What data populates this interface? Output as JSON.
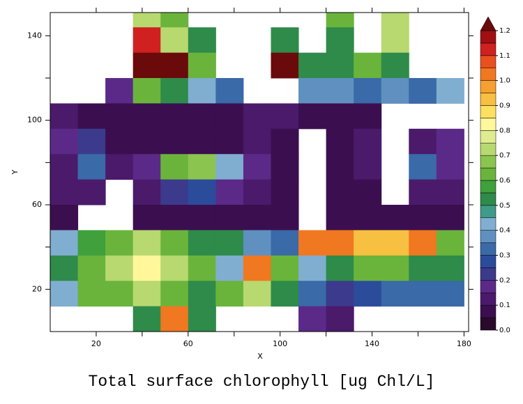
{
  "chart_data": {
    "type": "heatmap",
    "title": "Total surface chlorophyll [ug Chl/L]",
    "x_label": "X",
    "y_label": "Y",
    "xlim": [
      0,
      182
    ],
    "ylim": [
      0,
      151
    ],
    "xticks": [
      20,
      60,
      100,
      140,
      180
    ],
    "xminor": [
      40,
      80,
      120,
      160
    ],
    "yticks": [
      20,
      60,
      100,
      140
    ],
    "yminor": [
      40,
      80,
      120
    ],
    "x": [
      6,
      18,
      30,
      42,
      54,
      66,
      78,
      90,
      102,
      114,
      126,
      138,
      150,
      162,
      174
    ],
    "y": [
      150,
      138,
      126,
      114,
      102,
      90,
      78,
      66,
      54,
      42,
      30,
      18,
      6
    ],
    "z": [
      [
        null,
        null,
        null,
        0.7,
        0.6,
        null,
        null,
        null,
        null,
        null,
        0.6,
        null,
        0.7,
        null,
        null
      ],
      [
        null,
        null,
        null,
        1.1,
        0.7,
        0.5,
        null,
        null,
        0.5,
        null,
        0.5,
        null,
        0.7,
        null,
        null
      ],
      [
        null,
        null,
        null,
        1.2,
        1.2,
        0.6,
        null,
        null,
        1.2,
        0.5,
        0.5,
        0.6,
        0.5,
        null,
        null
      ],
      [
        null,
        null,
        0.15,
        0.6,
        0.5,
        0.4,
        0.3,
        null,
        null,
        0.35,
        0.35,
        0.3,
        0.35,
        0.3,
        0.4
      ],
      [
        0.1,
        0.08,
        0.05,
        0.05,
        0.05,
        0.05,
        0.08,
        0.1,
        0.1,
        0.05,
        0.05,
        0.05,
        null,
        null,
        null
      ],
      [
        0.15,
        0.2,
        0.05,
        0.05,
        0.05,
        0.05,
        0.05,
        0.1,
        0.05,
        null,
        0.05,
        0.1,
        null,
        0.1,
        0.15
      ],
      [
        0.1,
        0.3,
        0.1,
        0.15,
        0.6,
        0.65,
        0.4,
        0.15,
        0.05,
        null,
        0.05,
        0.1,
        null,
        0.3,
        0.15
      ],
      [
        0.1,
        0.1,
        null,
        0.1,
        0.2,
        0.25,
        0.15,
        0.1,
        0.05,
        null,
        0.05,
        0.05,
        null,
        0.1,
        0.1
      ],
      [
        0.05,
        null,
        null,
        0.05,
        0.05,
        0.05,
        0.05,
        0.05,
        0.05,
        null,
        0.05,
        0.05,
        0.05,
        0.05,
        0.05
      ],
      [
        0.4,
        0.55,
        0.6,
        0.7,
        0.6,
        0.5,
        0.5,
        0.35,
        0.3,
        1.0,
        1.0,
        0.9,
        0.9,
        1.0,
        0.6
      ],
      [
        0.5,
        0.6,
        0.7,
        0.8,
        0.7,
        0.6,
        0.4,
        1.0,
        0.6,
        0.4,
        0.5,
        0.6,
        0.6,
        0.5,
        0.5
      ],
      [
        0.4,
        0.6,
        0.6,
        0.7,
        0.6,
        0.5,
        0.6,
        0.7,
        0.5,
        0.3,
        0.2,
        0.25,
        0.3,
        0.3,
        0.3
      ],
      [
        null,
        null,
        null,
        0.5,
        1.0,
        0.5,
        null,
        null,
        null,
        0.15,
        0.1,
        null,
        null,
        null,
        null
      ]
    ],
    "colorbar": {
      "lim": [
        0,
        1.2
      ],
      "ticks": [
        {
          "value": 0,
          "label": "0.0"
        },
        0.1,
        0.2,
        0.3,
        0.4,
        0.5,
        0.6,
        0.7,
        0.8,
        0.9,
        {
          "value": 1,
          "label": "1.0"
        },
        1.1,
        1.2
      ],
      "colors": [
        "#2a0a2a",
        "#3b0f4f",
        "#4b1a6b",
        "#5b2a88",
        "#3c3a8c",
        "#2b4c9b",
        "#3a6aa8",
        "#6090c0",
        "#80aed0",
        "#3f9a8a",
        "#2e8b4a",
        "#3fa03c",
        "#6ab43c",
        "#8cc450",
        "#b8d870",
        "#e0ec90",
        "#fff79a",
        "#fde060",
        "#f8c040",
        "#f5a030",
        "#f07820",
        "#e85020",
        "#d02020",
        "#a01010"
      ],
      "over_color": "#6a0a0a"
    }
  }
}
